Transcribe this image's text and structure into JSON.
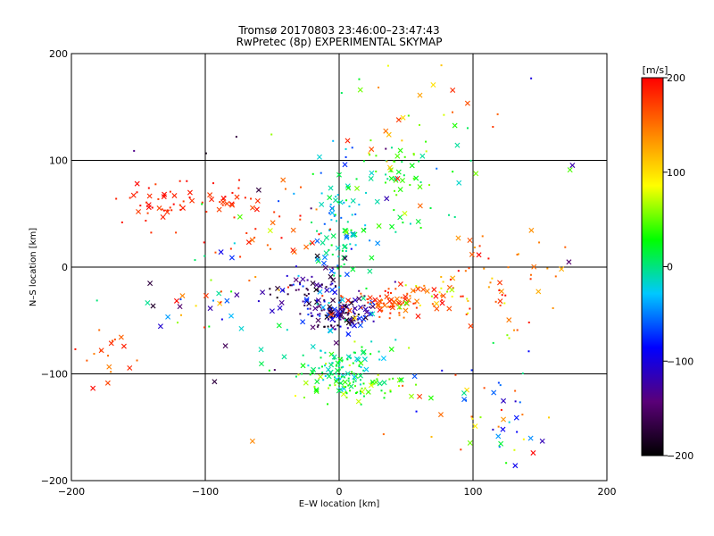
{
  "chart_data": {
    "type": "scatter",
    "title": "Tromsø 20170803 23:46:00–23:47:43",
    "subtitle": "RwPretec (8p) EXPERIMENTAL SKYMAP",
    "xlabel": "E–W location [km]",
    "ylabel": "N–S location [km]",
    "xlim": [
      -200,
      200
    ],
    "ylim": [
      -200,
      200
    ],
    "xticks": [
      -200,
      -100,
      0,
      100,
      200
    ],
    "yticks": [
      -200,
      -100,
      0,
      100,
      200
    ],
    "xtick_labels": [
      "−200",
      "−100",
      "0",
      "100",
      "200"
    ],
    "ytick_labels": [
      "−200",
      "−100",
      "0",
      "100",
      "200"
    ],
    "grid_lines": [
      -100,
      0,
      100
    ],
    "grid": true,
    "colorbar": {
      "label": "[m/s]",
      "range": [
        -200,
        200
      ],
      "ticks": [
        200,
        100,
        0,
        -100,
        -200
      ],
      "tick_labels": [
        "200",
        "100",
        "0",
        "−100",
        "−200"
      ],
      "colorscale": [
        "#000000",
        "#5a0078",
        "#0000ff",
        "#00c8ff",
        "#00ff00",
        "#ffff00",
        "#ff8000",
        "#ff0000"
      ]
    },
    "marker_styles": [
      "cross",
      "dot"
    ],
    "clusters": [
      {
        "x": 0,
        "y": -45,
        "sx": 14,
        "sy": 8,
        "n": 130,
        "vmin": -200,
        "vmax": -60
      },
      {
        "x": 40,
        "y": -35,
        "sx": 18,
        "sy": 6,
        "n": 70,
        "vmin": 140,
        "vmax": 200
      },
      {
        "x": 70,
        "y": -28,
        "sx": 16,
        "sy": 8,
        "n": 35,
        "vmin": 60,
        "vmax": 200
      },
      {
        "x": 0,
        "y": 30,
        "sx": 12,
        "sy": 40,
        "n": 110,
        "vmin": -70,
        "vmax": 30
      },
      {
        "x": 45,
        "y": 75,
        "sx": 22,
        "sy": 25,
        "n": 60,
        "vmin": -20,
        "vmax": 60
      },
      {
        "x": 0,
        "y": -95,
        "sx": 16,
        "sy": 12,
        "n": 90,
        "vmin": -30,
        "vmax": 40
      },
      {
        "x": 20,
        "y": -112,
        "sx": 20,
        "sy": 8,
        "n": 60,
        "vmin": 0,
        "vmax": 80
      },
      {
        "x": -20,
        "y": -20,
        "sx": 18,
        "sy": 8,
        "n": 50,
        "vmin": -200,
        "vmax": -90
      },
      {
        "x": -130,
        "y": 60,
        "sx": 14,
        "sy": 12,
        "n": 40,
        "vmin": 170,
        "vmax": 200
      },
      {
        "x": -85,
        "y": 65,
        "sx": 12,
        "sy": 8,
        "n": 25,
        "vmin": 170,
        "vmax": 200
      },
      {
        "x": -45,
        "y": 35,
        "sx": 20,
        "sy": 25,
        "n": 30,
        "vmin": 150,
        "vmax": 200
      },
      {
        "x": 120,
        "y": -10,
        "sx": 25,
        "sy": 25,
        "n": 45,
        "vmin": 120,
        "vmax": 200
      },
      {
        "x": 110,
        "y": -140,
        "sx": 20,
        "sy": 35,
        "n": 45,
        "vmin": -120,
        "vmax": 200
      },
      {
        "x": -170,
        "y": -85,
        "sx": 18,
        "sy": 15,
        "n": 20,
        "vmin": 140,
        "vmax": 200
      },
      {
        "x": -100,
        "y": -30,
        "sx": 30,
        "sy": 25,
        "n": 30,
        "vmin": -200,
        "vmax": 200
      },
      {
        "x": 60,
        "y": 140,
        "sx": 30,
        "sy": 25,
        "n": 25,
        "vmin": 0,
        "vmax": 200
      },
      {
        "x": 0,
        "y": 0,
        "sx": 90,
        "sy": 90,
        "n": 90,
        "vmin": -200,
        "vmax": 200
      }
    ]
  }
}
